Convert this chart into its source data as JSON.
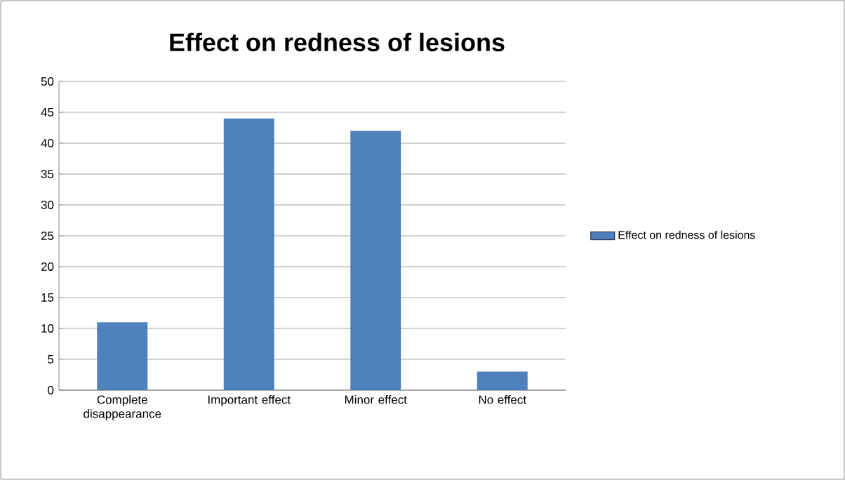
{
  "chart_data": {
    "type": "bar",
    "title": "Effect on redness of lesions",
    "categories": [
      "Complete disappearance",
      "Important effect",
      "Minor effect",
      "No effect"
    ],
    "series": [
      {
        "name": "Effect on redness of lesions",
        "color": "#4f81bd",
        "values": [
          11,
          44,
          42,
          3
        ]
      }
    ],
    "ylim": [
      0,
      50
    ],
    "yticks": [
      0,
      5,
      10,
      15,
      20,
      25,
      30,
      35,
      40,
      45,
      50
    ],
    "grid": "y",
    "legend": "right"
  }
}
